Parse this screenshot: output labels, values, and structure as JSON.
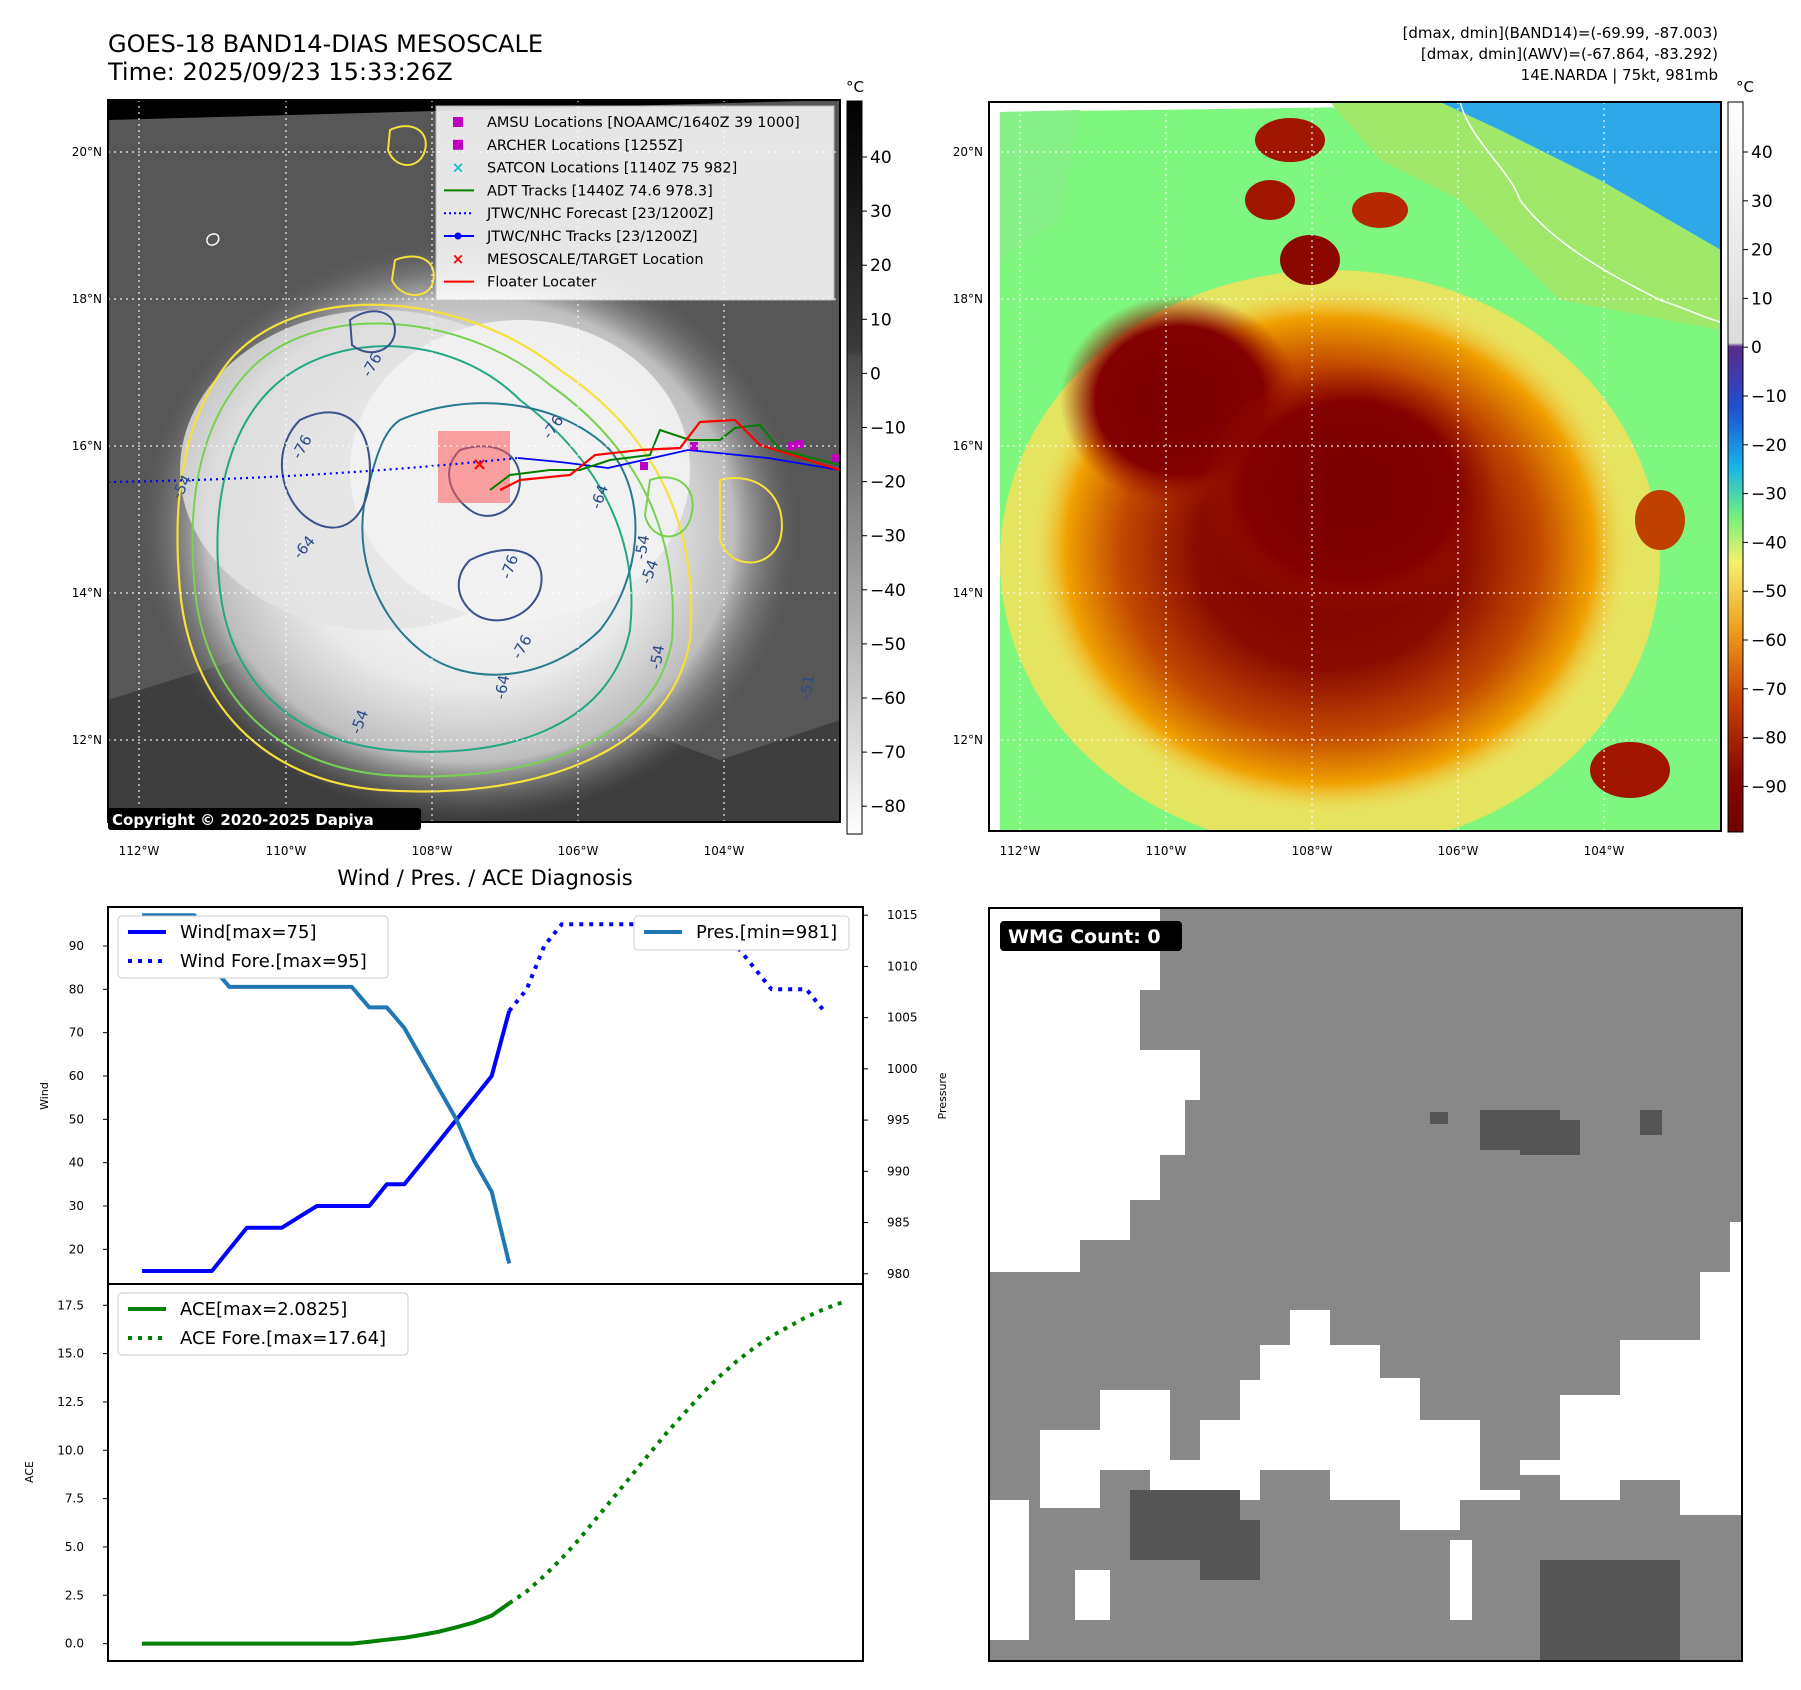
{
  "header": {
    "title": "GOES-18 BAND14-DIAS MESOSCALE",
    "time": "Time: 2025/09/23 15:33:26Z",
    "stats_band14": "[dmax, dmin](BAND14)=(-69.99, -87.003)",
    "stats_awv": "[dmax, dmin](AWV)=(-67.864, -83.292)",
    "storm": "14E.NARDA | 75kt, 981mb"
  },
  "copyright": "Copyright © 2020-2025 Dapiya",
  "map": {
    "lon_ticks": [
      "112°W",
      "110°W",
      "108°W",
      "106°W",
      "104°W"
    ],
    "lat_ticks": [
      "20°N",
      "18°N",
      "16°N",
      "14°N",
      "12°N"
    ],
    "contour_labels": [
      "-76",
      "-76",
      "-76",
      "-64",
      "-54",
      "-54",
      "-64",
      "-54",
      "-76",
      "-54",
      "-76",
      "-64",
      "-54",
      "-51"
    ]
  },
  "gray_colorbar": {
    "unit": "°C",
    "ticks": [
      "40",
      "30",
      "20",
      "10",
      "0",
      "−10",
      "−20",
      "−30",
      "−40",
      "−50",
      "−60",
      "−70",
      "−80"
    ]
  },
  "color_colorbar": {
    "unit": "°C",
    "ticks": [
      "40",
      "30",
      "20",
      "10",
      "0",
      "−10",
      "−20",
      "−30",
      "−40",
      "−50",
      "−60",
      "−70",
      "−80",
      "−90"
    ]
  },
  "map_legend": [
    {
      "label": "AMSU Locations [NOAAMC/1640Z 39 1000]",
      "marker": "square",
      "color": "#c000c0"
    },
    {
      "label": "ARCHER Locations [1255Z]",
      "marker": "square",
      "color": "#c000c0"
    },
    {
      "label": "SATCON Locations [1140Z 75 982]",
      "marker": "x",
      "color": "#17becf"
    },
    {
      "label": "ADT Tracks [1440Z 74.6 978.3]",
      "marker": "line",
      "color": "#008000"
    },
    {
      "label": "JTWC/NHC Forecast [23/1200Z]",
      "marker": "dotted",
      "color": "#0000ff"
    },
    {
      "label": "JTWC/NHC Tracks [23/1200Z]",
      "marker": "line-dot",
      "color": "#0000ff"
    },
    {
      "label": "MESOSCALE/TARGET Location",
      "marker": "x",
      "color": "#ff0000"
    },
    {
      "label": "Floater Locater",
      "marker": "line",
      "color": "#ff0000"
    }
  ],
  "wmg": {
    "label": "WMG Count: 0"
  },
  "chart_data": [
    {
      "type": "line",
      "title": "Wind / Pres. / ACE Diagnosis",
      "ylabel": "Wind",
      "y2label": "Pressure",
      "ylim": [
        12,
        99
      ],
      "y_ticks": [
        20,
        30,
        40,
        50,
        60,
        70,
        80,
        90
      ],
      "y2lim": [
        979,
        1015.8
      ],
      "y2_ticks": [
        980,
        985,
        990,
        995,
        1000,
        1005,
        1010,
        1015
      ],
      "x_steps": 41,
      "series": [
        {
          "name": "Wind[max=75]",
          "axis": "left",
          "style": "solid",
          "color": "#0000ff",
          "points": [
            [
              0,
              15
            ],
            [
              2,
              15
            ],
            [
              3,
              15
            ],
            [
              4,
              15
            ],
            [
              5,
              20
            ],
            [
              6,
              25
            ],
            [
              7,
              25
            ],
            [
              8,
              25
            ],
            [
              9,
              27.5
            ],
            [
              10,
              30
            ],
            [
              11,
              30
            ],
            [
              12,
              30
            ],
            [
              13,
              30
            ],
            [
              14,
              35
            ],
            [
              15,
              35
            ],
            [
              16,
              40
            ],
            [
              17,
              45
            ],
            [
              18,
              50
            ],
            [
              19,
              55
            ],
            [
              20,
              60
            ],
            [
              21,
              75
            ]
          ]
        },
        {
          "name": "Wind Fore.[max=95]",
          "axis": "left",
          "style": "dotted",
          "color": "#0000ff",
          "points": [
            [
              21,
              75
            ],
            [
              22,
              80
            ],
            [
              23,
              90
            ],
            [
              24,
              95
            ],
            [
              25,
              95
            ],
            [
              26,
              95
            ],
            [
              27,
              95
            ],
            [
              28,
              95
            ],
            [
              29,
              95
            ],
            [
              30,
              95
            ],
            [
              31,
              95
            ],
            [
              32,
              90
            ],
            [
              33,
              90
            ],
            [
              34,
              90
            ],
            [
              35,
              85
            ],
            [
              36,
              80
            ],
            [
              37,
              80
            ],
            [
              38,
              80
            ],
            [
              39,
              75
            ]
          ]
        },
        {
          "name": "Pres.[min=981]",
          "axis": "right",
          "style": "solid",
          "color": "#1f77b4",
          "points": [
            [
              0,
              1015
            ],
            [
              3,
              1015
            ],
            [
              4,
              1010
            ],
            [
              5,
              1008
            ],
            [
              6,
              1008
            ],
            [
              7,
              1008
            ],
            [
              8,
              1008
            ],
            [
              9,
              1008
            ],
            [
              10,
              1008
            ],
            [
              11,
              1008
            ],
            [
              12,
              1008
            ],
            [
              13,
              1006
            ],
            [
              14,
              1006
            ],
            [
              15,
              1004
            ],
            [
              16,
              1001
            ],
            [
              17,
              998
            ],
            [
              18,
              995
            ],
            [
              19,
              991
            ],
            [
              20,
              988
            ],
            [
              21,
              981
            ]
          ]
        }
      ],
      "legend": [
        {
          "label": "Wind[max=75]",
          "style": "solid",
          "color": "#0000ff"
        },
        {
          "label": "Wind Fore.[max=95]",
          "style": "dotted",
          "color": "#0000ff"
        },
        {
          "label": "Pres.[min=981]",
          "style": "solid",
          "color": "#1f77b4"
        }
      ]
    },
    {
      "type": "line",
      "title": "",
      "ylabel": "ACE",
      "ylim": [
        -0.9,
        18.6
      ],
      "y_ticks": [
        0.0,
        2.5,
        5.0,
        7.5,
        10.0,
        12.5,
        15.0,
        17.5
      ],
      "x_steps": 41,
      "series": [
        {
          "name": "ACE[max=2.0825]",
          "style": "solid",
          "color": "#008000",
          "points": [
            [
              0,
              0
            ],
            [
              12,
              0
            ],
            [
              13,
              0.1
            ],
            [
              14,
              0.2
            ],
            [
              15,
              0.3
            ],
            [
              16,
              0.45
            ],
            [
              17,
              0.62
            ],
            [
              18,
              0.85
            ],
            [
              19,
              1.1
            ],
            [
              20,
              1.45
            ],
            [
              21,
              2.0825
            ]
          ]
        },
        {
          "name": "ACE Fore.[max=17.64]",
          "style": "dotted",
          "color": "#008000",
          "points": [
            [
              21,
              2.0825
            ],
            [
              22,
              2.7
            ],
            [
              23,
              3.5
            ],
            [
              24,
              4.4
            ],
            [
              25,
              5.4
            ],
            [
              26,
              6.5
            ],
            [
              27,
              7.6
            ],
            [
              28,
              8.7
            ],
            [
              29,
              9.8
            ],
            [
              30,
              10.9
            ],
            [
              31,
              11.9
            ],
            [
              32,
              12.9
            ],
            [
              33,
              13.8
            ],
            [
              34,
              14.6
            ],
            [
              35,
              15.3
            ],
            [
              36,
              15.9
            ],
            [
              37,
              16.4
            ],
            [
              38,
              16.9
            ],
            [
              39,
              17.3
            ],
            [
              40,
              17.64
            ]
          ]
        }
      ],
      "legend": [
        {
          "label": "ACE[max=2.0825]",
          "style": "solid",
          "color": "#008000"
        },
        {
          "label": "ACE Fore.[max=17.64]",
          "style": "dotted",
          "color": "#008000"
        }
      ]
    }
  ]
}
